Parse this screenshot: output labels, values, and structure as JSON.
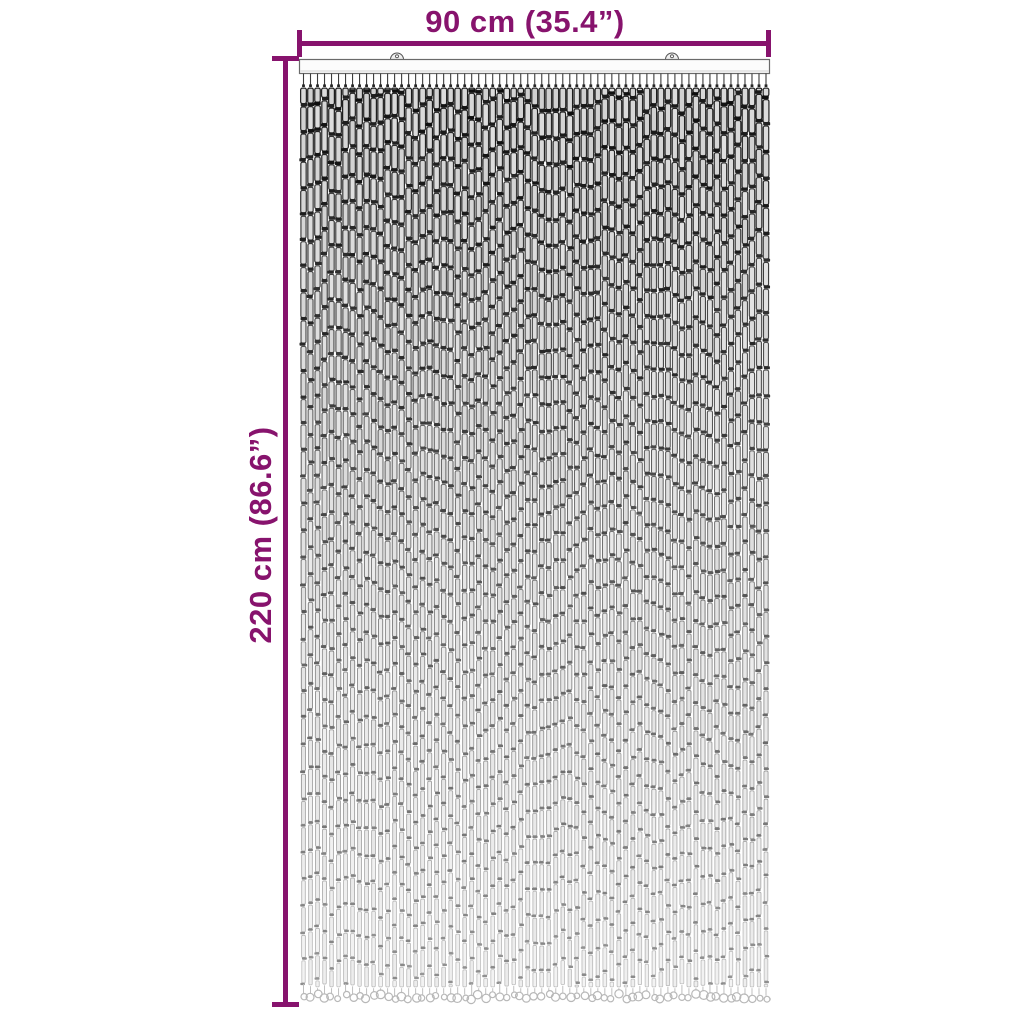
{
  "figure": {
    "subject": "bead-door-curtain",
    "type": "product-dimension-diagram"
  },
  "dimensions": {
    "width_label": "90 cm (35.4”)",
    "height_label": "220 cm (86.6”)"
  },
  "colors": {
    "accent": "#87136d",
    "background": "#ffffff",
    "rail_stroke": "#6a6a6a"
  },
  "curtain": {
    "strand_count": 67,
    "bracket_count": 2
  }
}
